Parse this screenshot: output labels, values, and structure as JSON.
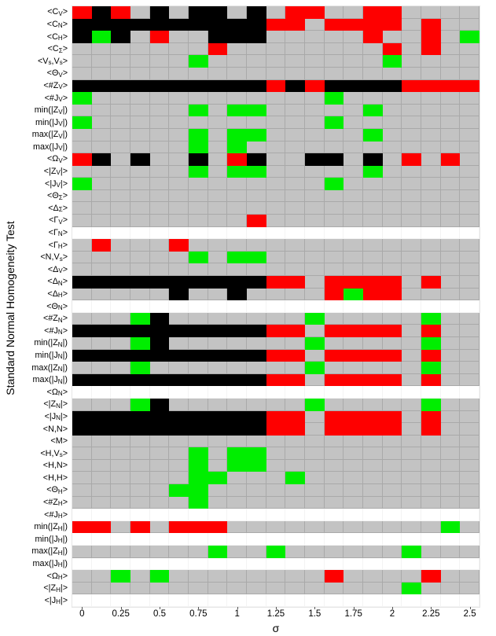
{
  "chart_data": {
    "type": "heatmap",
    "title": "",
    "xlabel": "σ",
    "ylabel": "Standard Normal Homogeneity Test",
    "x_ticks": [
      "0",
      "0.25",
      "0.5",
      "0.75",
      "1",
      "1.25",
      "1.5",
      "1.75",
      "2",
      "2.25",
      "2.5"
    ],
    "x_range": [
      0,
      2.5
    ],
    "x_step_per_cell": 0.125,
    "n_columns": 21,
    "grid": "on",
    "legend_position": "none",
    "color_key": {
      "G": "#c3c3c3",
      "K": "#000000",
      "R": "#fe0000",
      "E": "#00ee00",
      "W": "#ffffff"
    },
    "color_meaning": {
      "G": "gray cell",
      "K": "black cell",
      "R": "red cell",
      "E": "green cell",
      "W": "empty (white) row cell"
    },
    "rows": [
      {
        "label": "<C_V>",
        "cells": "RKRGKGKKGKGRRGGRRGGGG"
      },
      {
        "label": "<C_N>",
        "cells": "KKKKKKKKKKRRGRRRRGRGG"
      },
      {
        "label": "<C_H>",
        "cells": "KEKGRGGKKKGGGGGRGGRGE"
      },
      {
        "label": "<C_Σ>",
        "cells": "GGGGGGGRGGGGGGGGRGRGG"
      },
      {
        "label": "<V_s,V_s>",
        "cells": "GGGGGGEGGGGGGGGGEGGGG"
      },
      {
        "label": "<Θ_V>",
        "cells": "GGGGGGGGGGGGGGGGGGGGG"
      },
      {
        "label": "<#Z_V>",
        "cells": "KKKKKKKKKKRKRKKKKRRRR"
      },
      {
        "label": "<#J_V>",
        "cells": "EGGGGGGGGGGGGEGGGGGGG"
      },
      {
        "label": "min(|Z_V|)",
        "cells": "GGGGGGEGEEGGGGGEGGGGG"
      },
      {
        "label": "min(|J_V|)",
        "cells": "EGGGGGGGGGGGGEGGGGGGG"
      },
      {
        "label": "max(|Z_V|)",
        "cells": "GGGGGGEGEEGGGGGEGGGGG"
      },
      {
        "label": "max(|J_V|)",
        "cells": "GGGGGGEGEGGGGGGGGGGGG"
      },
      {
        "label": "<Ω_V>",
        "cells": "RKGKGGKGRKGGKKGKGRGRG"
      },
      {
        "label": "<|Z_V|>",
        "cells": "GGGGGGEGEEGGGGGEGGGGG"
      },
      {
        "label": "<|J_V|>",
        "cells": "EGGGGGGGGGGGGEGGGGGGG"
      },
      {
        "label": "<Θ_Σ>",
        "cells": "GGGGGGGGGGGGGGGGGGGGG"
      },
      {
        "label": "<Δ_Σ>",
        "cells": "GGGGGGGGGGGGGGGGGGGGG"
      },
      {
        "label": "<Γ_V>",
        "cells": "GGGGGGGGGRGGGGGGGGGGG"
      },
      {
        "label": "<Γ_N>",
        "cells": "WWWWWWWWWWWWWWWWWWWWW"
      },
      {
        "label": "<Γ_H>",
        "cells": "GRGGGRGGGGGGGGGGGGGGG"
      },
      {
        "label": "<N,V_s>",
        "cells": "GGGGGGEGEEGGGGGGGGGGG"
      },
      {
        "label": "<Δ_V>",
        "cells": "GGGGGGGGGGGGGGGGGGGGG"
      },
      {
        "label": "<Δ_N>",
        "cells": "KKKKKKKKKKRRGRRRRGRGG"
      },
      {
        "label": "<Δ_H>",
        "cells": "GGGGGKGGKGGGGRERRGGGG"
      },
      {
        "label": "<Θ_N>",
        "cells": "WWWWWWWWWWWWWWWWWWWWW"
      },
      {
        "label": "<#Z_N>",
        "cells": "GGGEKGGGGGGGEGGGGGEGG"
      },
      {
        "label": "<#J_N>",
        "cells": "KKKKKKKKKKRRGRRRRGRGG"
      },
      {
        "label": "min(|Z_N|)",
        "cells": "GGGEKGGGGGGGEGGGGGEGG"
      },
      {
        "label": "min(|J_N|)",
        "cells": "KKKKKKKKKKRRGRRRRGRGG"
      },
      {
        "label": "max(|Z_N|)",
        "cells": "GGGEGGGGGGGGEGGGGGEGG"
      },
      {
        "label": "max(|J_N|)",
        "cells": "KKKKKKKKKKRRGRRRRGRGG"
      },
      {
        "label": "<Ω_N>",
        "cells": "WWWWWWWWWWWWWWWWWWWWW"
      },
      {
        "label": "<|Z_N|>",
        "cells": "GGGEKGGGGGGGEGGGGGEGG"
      },
      {
        "label": "<|J_N|>",
        "cells": "KKKKKKKKKKRRGRRRRGRGG"
      },
      {
        "label": "<N,N>",
        "cells": "KKKKKKKKKKRRGRRRRGRGG"
      },
      {
        "label": "<M>",
        "cells": "GGGGGGGGGGGGGGGGGGGGG"
      },
      {
        "label": "<H,V_s>",
        "cells": "GGGGGGEGEEGGGGGGGGGGG"
      },
      {
        "label": "<H,N>",
        "cells": "GGGGGGEGEEGGGGGGGGGGG"
      },
      {
        "label": "<H,H>",
        "cells": "GGGGGGEEGGGEGGGGGGGGG"
      },
      {
        "label": "<Θ_H>",
        "cells": "GGGGGEEGGGGGGGGGGGGGG"
      },
      {
        "label": "<#Z_H>",
        "cells": "GGGGGGEGGGGGGGGGGGGGG"
      },
      {
        "label": "<#J_H>",
        "cells": "WWWWWWWWWWWWWWWWWWWWW"
      },
      {
        "label": "min(|Z_H|)",
        "cells": "RRGRGRRRGGGGGGGGGGGEG"
      },
      {
        "label": "min(|J_H|)",
        "cells": "WWWWWWWWWWWWWWWWWWWWW"
      },
      {
        "label": "max(|Z_H|)",
        "cells": "GGGGGGGEGGEGGGGGGEGGG"
      },
      {
        "label": "max(|J_H|)",
        "cells": "WWWWWWWWWWWWWWWWWWWWW"
      },
      {
        "label": "<Ω_H>",
        "cells": "GGEGEGGGGGGGGRGGGGRGG"
      },
      {
        "label": "<|Z_H|>",
        "cells": "GGGGGGGGGGGGGGGGGEGGG"
      },
      {
        "label": "<|J_H|>",
        "cells": "WWWWWWWWWWWWWWWWWWWWW"
      }
    ]
  }
}
